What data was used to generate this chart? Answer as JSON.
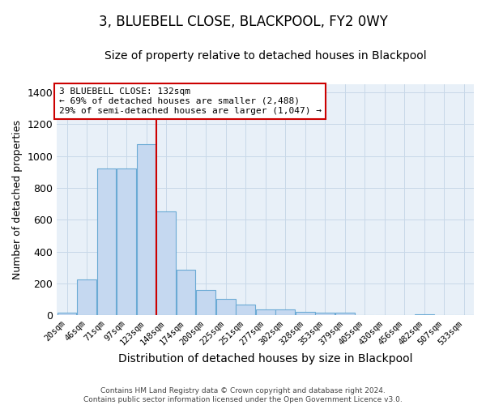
{
  "title": "3, BLUEBELL CLOSE, BLACKPOOL, FY2 0WY",
  "subtitle": "Size of property relative to detached houses in Blackpool",
  "xlabel": "Distribution of detached houses by size in Blackpool",
  "ylabel": "Number of detached properties",
  "bar_labels": [
    "20sqm",
    "46sqm",
    "71sqm",
    "97sqm",
    "123sqm",
    "148sqm",
    "174sqm",
    "200sqm",
    "225sqm",
    "251sqm",
    "277sqm",
    "302sqm",
    "328sqm",
    "353sqm",
    "379sqm",
    "405sqm",
    "430sqm",
    "456sqm",
    "482sqm",
    "507sqm",
    "533sqm"
  ],
  "bar_values": [
    18,
    225,
    920,
    920,
    1075,
    650,
    285,
    157,
    105,
    68,
    37,
    37,
    22,
    18,
    15,
    0,
    0,
    0,
    8,
    0,
    0
  ],
  "bar_color": "#c5d8f0",
  "bar_edge_color": "#6aaad4",
  "grid_color": "#c8d8e8",
  "background_color": "#e8f0f8",
  "vline_x": 4.5,
  "vline_color": "#cc0000",
  "annotation_text": "3 BLUEBELL CLOSE: 132sqm\n← 69% of detached houses are smaller (2,488)\n29% of semi-detached houses are larger (1,047) →",
  "annotation_box_color": "#ffffff",
  "annotation_box_edge": "#cc0000",
  "footnote": "Contains HM Land Registry data © Crown copyright and database right 2024.\nContains public sector information licensed under the Open Government Licence v3.0.",
  "ylim": [
    0,
    1450
  ],
  "title_fontsize": 12,
  "subtitle_fontsize": 10,
  "title_fontweight": "normal"
}
